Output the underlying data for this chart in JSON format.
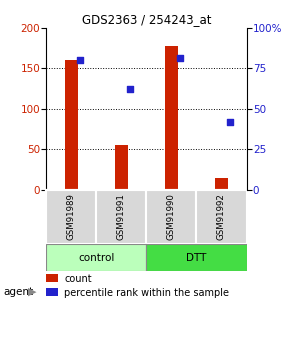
{
  "title": "GDS2363 / 254243_at",
  "categories": [
    "GSM91989",
    "GSM91991",
    "GSM91990",
    "GSM91992"
  ],
  "bar_values": [
    160,
    55,
    177,
    15
  ],
  "percentile_values": [
    80,
    62,
    81,
    42
  ],
  "bar_color": "#cc2200",
  "dot_color": "#2222cc",
  "left_ylim": [
    0,
    200
  ],
  "right_ylim": [
    0,
    100
  ],
  "left_yticks": [
    0,
    50,
    100,
    150,
    200
  ],
  "right_yticks": [
    0,
    25,
    50,
    75,
    100
  ],
  "right_yticklabels": [
    "0",
    "25",
    "50",
    "75",
    "100%"
  ],
  "grid_values": [
    50,
    100,
    150
  ],
  "groups": [
    {
      "label": "control",
      "indices": [
        0,
        1
      ],
      "color": "#bbffbb"
    },
    {
      "label": "DTT",
      "indices": [
        2,
        3
      ],
      "color": "#44dd44"
    }
  ],
  "agent_label": "agent",
  "legend_count_label": "count",
  "legend_pct_label": "percentile rank within the sample",
  "sample_bg_color": "#d8d8d8",
  "plot_bg": "#ffffff",
  "bar_width": 0.25
}
